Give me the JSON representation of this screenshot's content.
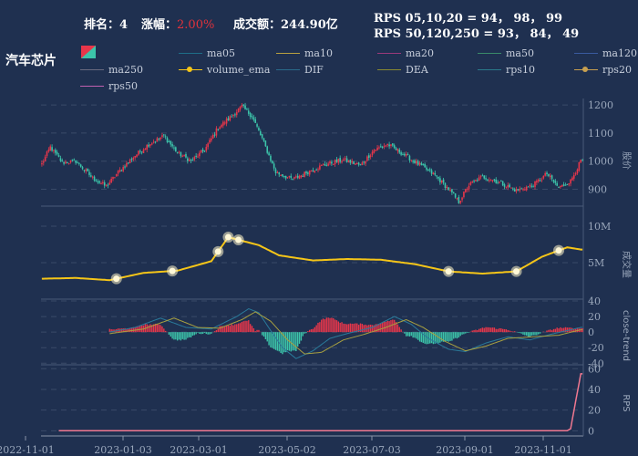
{
  "header": {
    "rank_label": "排名：",
    "rank_value": "4",
    "change_label": "涨幅：",
    "change_value": "2.00%",
    "turnover_label": "成交额：",
    "turnover_value": "244.90亿",
    "rps_short": "RPS 05,10,20 = 94， 98， 99",
    "rps_long": "RPS 50,120,250 = 93， 84， 49"
  },
  "stock_name": "汽车芯片",
  "colors": {
    "up": "#e8364a",
    "down": "#3cc4aa",
    "ema": "#f5c518",
    "rps": "#f07890",
    "background": "#1f3050"
  },
  "legend": [
    {
      "name": "ma05",
      "color": "#1e6e88",
      "dot": false
    },
    {
      "name": "ma10",
      "color": "#b8a040",
      "dot": false
    },
    {
      "name": "ma20",
      "color": "#9a3a7a",
      "dot": false
    },
    {
      "name": "ma50",
      "color": "#3a8a6a",
      "dot": false
    },
    {
      "name": "ma120",
      "color": "#3a5aa0",
      "dot": false
    },
    {
      "name": "ma250",
      "color": "#6a6a80",
      "dot": false
    },
    {
      "name": "volume_ema",
      "color": "#f5c518",
      "dot": true
    },
    {
      "name": "DIF",
      "color": "#2a6a8a",
      "dot": false
    },
    {
      "name": "DEA",
      "color": "#8a8a30",
      "dot": false
    },
    {
      "name": "rps10",
      "color": "#2a7a8a",
      "dot": false
    },
    {
      "name": "rps20",
      "color": "#c8a050",
      "dot": true
    },
    {
      "name": "rps50",
      "color": "#c060b0",
      "dot": false
    }
  ],
  "chart_data": {
    "type": "candlestick",
    "x_ticks": [
      "2022-11-01",
      "2023-01-03",
      "2023-03-01",
      "2023-05-02",
      "2023-07-03",
      "2023-09-01",
      "2023-11-01"
    ],
    "price_panel": {
      "ylabel": "股价",
      "ylim": [
        840,
        1210
      ],
      "ticks": [
        900,
        1000,
        1100,
        1200
      ],
      "anchors": [
        [
          0,
          990
        ],
        [
          5,
          1050
        ],
        [
          12,
          995
        ],
        [
          20,
          1000
        ],
        [
          30,
          940
        ],
        [
          38,
          910
        ],
        [
          45,
          960
        ],
        [
          55,
          1020
        ],
        [
          63,
          1060
        ],
        [
          72,
          1090
        ],
        [
          80,
          1030
        ],
        [
          88,
          1000
        ],
        [
          96,
          1040
        ],
        [
          104,
          1120
        ],
        [
          112,
          1160
        ],
        [
          118,
          1195
        ],
        [
          124,
          1160
        ],
        [
          130,
          1080
        ],
        [
          138,
          960
        ],
        [
          148,
          935
        ],
        [
          158,
          965
        ],
        [
          168,
          990
        ],
        [
          178,
          1005
        ],
        [
          188,
          985
        ],
        [
          196,
          1040
        ],
        [
          204,
          1060
        ],
        [
          212,
          1030
        ],
        [
          222,
          990
        ],
        [
          232,
          950
        ],
        [
          240,
          900
        ],
        [
          246,
          855
        ],
        [
          252,
          915
        ],
        [
          260,
          945
        ],
        [
          270,
          925
        ],
        [
          280,
          895
        ],
        [
          290,
          915
        ],
        [
          298,
          955
        ],
        [
          305,
          905
        ],
        [
          312,
          930
        ],
        [
          318,
          1000
        ]
      ]
    },
    "volume_panel": {
      "ylabel": "成交量",
      "ylim": [
        0,
        12000000
      ],
      "ticks": [
        5000000,
        10000000
      ],
      "tick_labels": [
        "5M",
        "10M"
      ],
      "anchors": [
        [
          0,
          2.8
        ],
        [
          20,
          2.9
        ],
        [
          40,
          2.6
        ],
        [
          60,
          3.6
        ],
        [
          80,
          3.9
        ],
        [
          100,
          5.2
        ],
        [
          110,
          8.5
        ],
        [
          118,
          8.0
        ],
        [
          128,
          7.4
        ],
        [
          140,
          6.0
        ],
        [
          160,
          5.3
        ],
        [
          180,
          5.5
        ],
        [
          200,
          5.4
        ],
        [
          220,
          4.8
        ],
        [
          240,
          3.8
        ],
        [
          260,
          3.5
        ],
        [
          280,
          3.8
        ],
        [
          295,
          5.8
        ],
        [
          310,
          7.1
        ],
        [
          318,
          6.8
        ]
      ]
    },
    "macd_panel": {
      "ylabel": "close-trend",
      "ylim": [
        -42,
        40
      ],
      "ticks": [
        -40,
        -20,
        0,
        20,
        40
      ],
      "dif_anchors": [
        [
          40,
          0
        ],
        [
          55,
          6
        ],
        [
          70,
          18
        ],
        [
          85,
          6
        ],
        [
          100,
          4
        ],
        [
          115,
          20
        ],
        [
          122,
          30
        ],
        [
          128,
          25
        ],
        [
          135,
          2
        ],
        [
          142,
          -20
        ],
        [
          150,
          -34
        ],
        [
          160,
          -24
        ],
        [
          170,
          -8
        ],
        [
          180,
          -2
        ],
        [
          195,
          6
        ],
        [
          208,
          20
        ],
        [
          218,
          10
        ],
        [
          228,
          -8
        ],
        [
          240,
          -22
        ],
        [
          250,
          -25
        ],
        [
          262,
          -14
        ],
        [
          275,
          -6
        ],
        [
          288,
          -10
        ],
        [
          300,
          -3
        ],
        [
          318,
          6
        ]
      ],
      "dea_anchors": [
        [
          40,
          -2
        ],
        [
          60,
          4
        ],
        [
          78,
          18
        ],
        [
          92,
          6
        ],
        [
          105,
          5
        ],
        [
          118,
          16
        ],
        [
          126,
          26
        ],
        [
          135,
          14
        ],
        [
          145,
          -10
        ],
        [
          155,
          -28
        ],
        [
          165,
          -26
        ],
        [
          178,
          -10
        ],
        [
          190,
          -3
        ],
        [
          203,
          6
        ],
        [
          215,
          16
        ],
        [
          225,
          6
        ],
        [
          238,
          -12
        ],
        [
          250,
          -24
        ],
        [
          262,
          -18
        ],
        [
          275,
          -8
        ],
        [
          290,
          -6
        ],
        [
          305,
          -4
        ],
        [
          318,
          3
        ]
      ]
    },
    "rps_panel": {
      "ylabel": "RPS",
      "ylim": [
        -5,
        62
      ],
      "ticks": [
        0,
        20,
        40,
        60
      ],
      "anchors": [
        [
          0,
          0
        ],
        [
          310,
          0
        ],
        [
          312,
          2
        ],
        [
          318,
          55
        ]
      ]
    },
    "ema_markers": [
      44,
      77,
      104,
      110,
      116,
      240,
      280,
      305
    ]
  }
}
